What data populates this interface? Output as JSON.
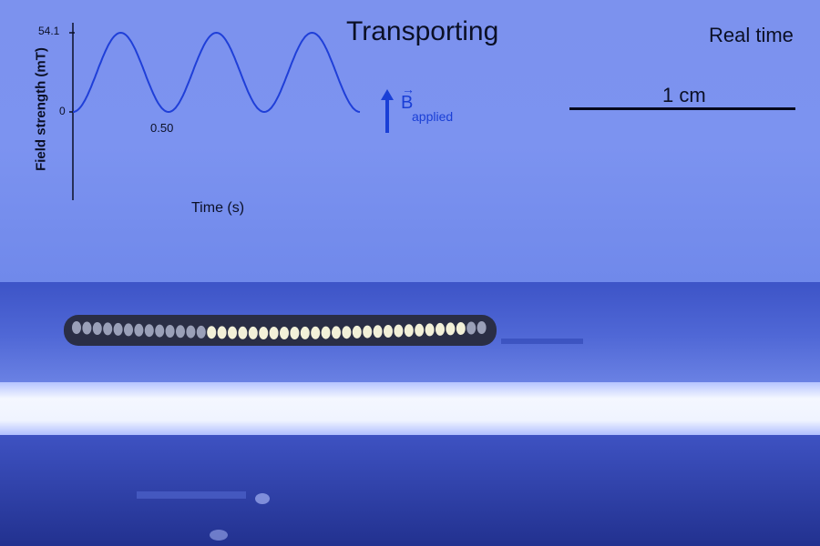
{
  "title": "Transporting",
  "mode": "Real time",
  "scale_bar": {
    "label": "1 cm"
  },
  "inset_plot": {
    "ylabel": "Field strength (mT)",
    "xlabel": "Time (s)",
    "ytick_top": "54.1",
    "ytick_zero": "0",
    "xtick": "0.50"
  },
  "field_indicator": {
    "symbol": "B",
    "subscript": "applied",
    "vector_mark": "→"
  },
  "colors": {
    "background_top": "#7e94f0",
    "background_bottom": "#2c3fa8",
    "curve": "#1f3fd8",
    "light_strip": "#f4f7ff"
  },
  "chart_data": {
    "type": "line",
    "xlabel": "Time (s)",
    "ylabel": "Field strength (mT)",
    "series": [
      {
        "x": [
          0.0,
          0.05,
          0.1,
          0.167,
          0.233,
          0.283,
          0.333,
          0.383,
          0.433,
          0.5,
          0.567,
          0.617,
          0.667,
          0.717,
          0.767,
          0.833,
          0.9,
          0.95,
          1.0
        ],
        "values": [
          0,
          0,
          10,
          40,
          54.1,
          40,
          10,
          0,
          10,
          40,
          54.1,
          40,
          10,
          0,
          10,
          54.1,
          40,
          10,
          0
        ]
      }
    ],
    "ylim": [
      0,
      54.1
    ]
  }
}
